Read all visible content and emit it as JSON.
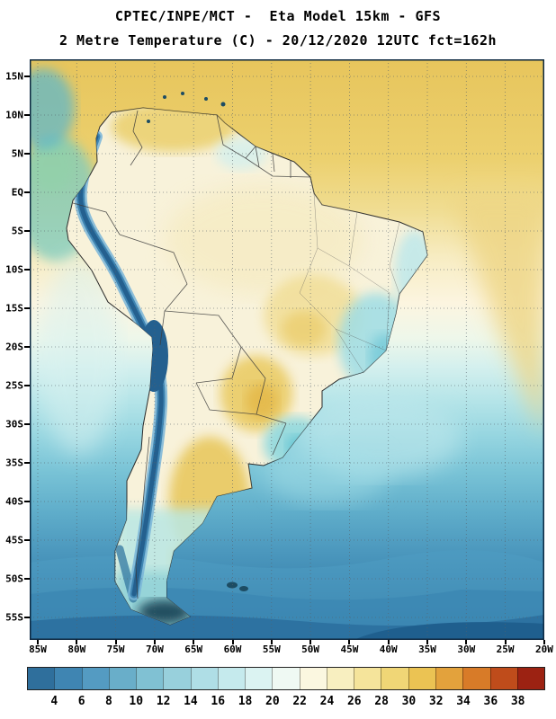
{
  "header": {
    "title_line1": "CPTEC/INPE/MCT -  Eta Model 15km - GFS",
    "title_line2": "2 Metre Temperature (C) - 20/12/2020 12UTC fct=162h"
  },
  "map": {
    "lat_labels": [
      "15N",
      "10N",
      "5N",
      "EQ",
      "5S",
      "10S",
      "15S",
      "20S",
      "25S",
      "30S",
      "35S",
      "40S",
      "45S",
      "50S",
      "55S"
    ],
    "lon_labels": [
      "85W",
      "80W",
      "75W",
      "70W",
      "65W",
      "60W",
      "55W",
      "50W",
      "45W",
      "40W",
      "35W",
      "30W",
      "25W",
      "20W"
    ]
  },
  "colorbar": {
    "tick_labels": [
      "4",
      "6",
      "8",
      "10",
      "12",
      "14",
      "16",
      "18",
      "20",
      "22",
      "24",
      "26",
      "28",
      "30",
      "32",
      "34",
      "36",
      "38"
    ],
    "cell_colors": [
      "#2f6f9c",
      "#3f85b2",
      "#549bc2",
      "#69aec9",
      "#80c1d3",
      "#98d0dc",
      "#afdee6",
      "#c5eaed",
      "#dbf3f2",
      "#eff9f3",
      "#fbf7e0",
      "#f8efc0",
      "#f5e49b",
      "#f0d676",
      "#ebc353",
      "#e3a23c",
      "#d87b28",
      "#bf4c1b",
      "#9c2212"
    ],
    "units": "C"
  }
}
